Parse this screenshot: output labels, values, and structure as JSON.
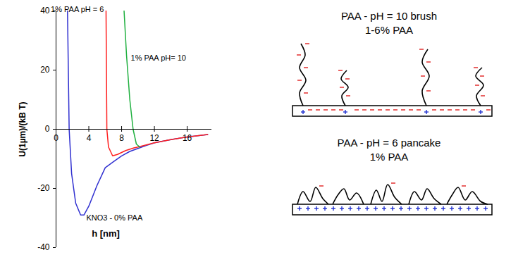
{
  "chart_data": {
    "type": "line",
    "xlabel": "h [nm]",
    "ylabel": "U(1µm)/(kB T)",
    "xlim": [
      0,
      19
    ],
    "ylim": [
      -40,
      40
    ],
    "xticks": [
      0,
      4,
      8,
      12,
      16
    ],
    "yticks": [
      -40,
      -20,
      0,
      20,
      40
    ],
    "series": [
      {
        "name": "KNO3 - 0% PAA",
        "color": "#3030d0",
        "x": [
          1.4,
          1.6,
          1.9,
          2.4,
          3.0,
          3.4,
          4,
          5,
          6,
          7,
          8,
          9,
          10,
          11,
          12,
          14,
          16,
          18.5
        ],
        "values": [
          40,
          0,
          -15,
          -25,
          -29,
          -29,
          -26,
          -19,
          -13,
          -11,
          -9,
          -7.5,
          -6.5,
          -5.5,
          -4.6,
          -3.5,
          -2.6,
          -1.8
        ]
      },
      {
        "name": "1% PAA pH = 6",
        "color": "#ff2020",
        "x": [
          6.1,
          6.15,
          6.2,
          6.4,
          6.9,
          7.5,
          8.5,
          9.5,
          10,
          12,
          14,
          16,
          18.5
        ],
        "values": [
          40,
          20,
          0,
          -6,
          -9,
          -8.5,
          -7.2,
          -6.3,
          -6,
          -4.6,
          -3.5,
          -2.6,
          -1.8
        ]
      },
      {
        "name": "1% PAA pH= 10",
        "color": "#20b040",
        "x": [
          8.3,
          8.6,
          9.0,
          9.4,
          9.8,
          10.2
        ],
        "values": [
          40,
          25,
          10,
          0,
          -5,
          -6
        ]
      }
    ]
  },
  "diagram": {
    "panels": [
      {
        "title": "PAA - pH = 10 brush",
        "subtitle": "1-6% PAA"
      },
      {
        "title": "PAA - pH = 6 pancake",
        "subtitle": "1% PAA"
      }
    ]
  }
}
